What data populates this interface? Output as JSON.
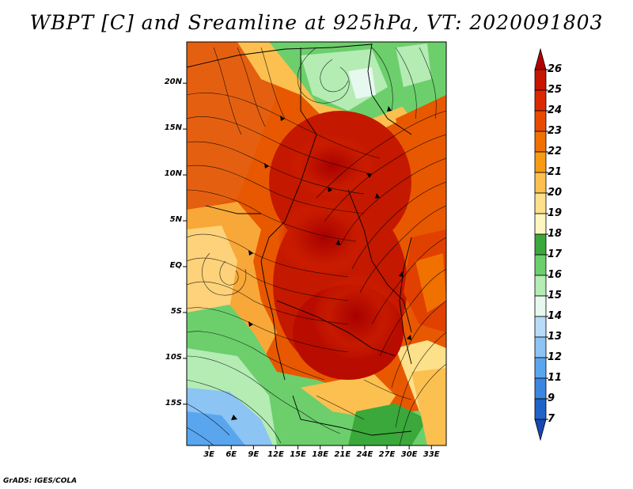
{
  "title": "WBPT [C] and Sreamline at 925hPa, VT: 2020091803",
  "credit": "GrADS: IGES/COLA",
  "map": {
    "variable": "Wet-bulb potential temperature (WBPT)",
    "level": "925hPa",
    "lat_labels": [
      "20N",
      "15N",
      "10N",
      "5N",
      "EQ",
      "5S",
      "10S",
      "15S"
    ],
    "lat_values": [
      20,
      15,
      10,
      5,
      0,
      -5,
      -10,
      -15
    ],
    "lon_labels": [
      "3E",
      "6E",
      "9E",
      "12E",
      "15E",
      "18E",
      "21E",
      "24E",
      "27E",
      "30E",
      "33E"
    ],
    "lon_values": [
      3,
      6,
      9,
      12,
      15,
      18,
      21,
      24,
      27,
      30,
      33
    ],
    "extent": {
      "lon_min": 0,
      "lon_max": 35,
      "lat_min": -19.5,
      "lat_max": 24.5
    }
  },
  "colorbar": {
    "labels": [
      "26",
      "25",
      "24",
      "23",
      "22",
      "21",
      "20",
      "19",
      "18",
      "17",
      "16",
      "15",
      "14",
      "13",
      "12",
      "11",
      "9",
      "7"
    ],
    "colors": [
      "#b00000",
      "#c81400",
      "#dc2800",
      "#e84a00",
      "#f07000",
      "#f79a14",
      "#fbc050",
      "#fde08a",
      "#fff5c0",
      "#3aa83a",
      "#6ccf6c",
      "#b4ecb4",
      "#e6f8f0",
      "#b8dcf8",
      "#8cc4f4",
      "#5aa6ee",
      "#3a86e0",
      "#1f62c8",
      "#1848b0"
    ]
  }
}
